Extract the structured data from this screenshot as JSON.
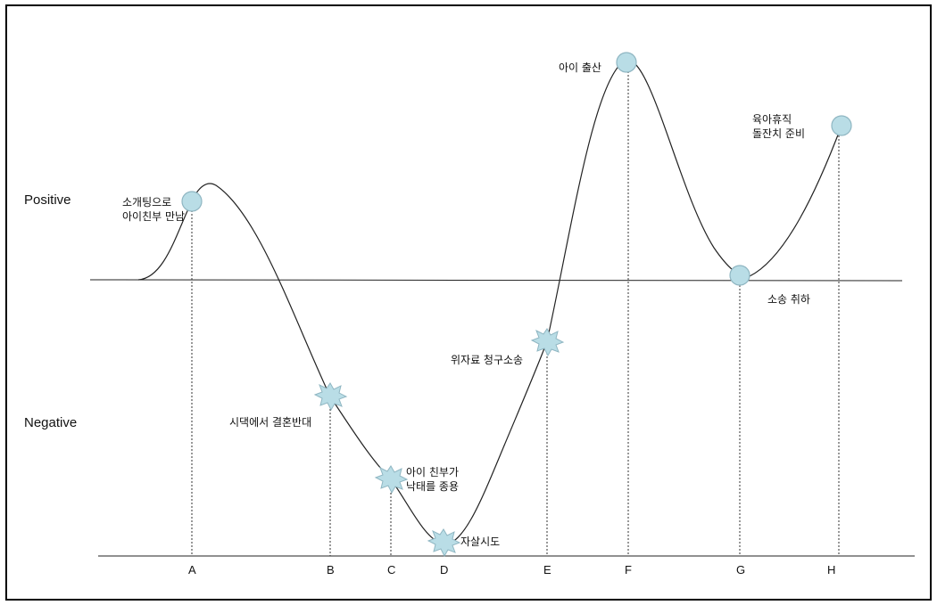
{
  "axis": {
    "positive": "Positive",
    "negative": "Negative"
  },
  "colors": {
    "marker_fill": "#b9dde6",
    "marker_stroke": "#8fb6c2",
    "line": "#222222"
  },
  "stages": [
    {
      "letter": "A",
      "label": [
        "소개팅으로",
        "아이친부 만남"
      ],
      "marker": "circle"
    },
    {
      "letter": "B",
      "label": [
        "시댁에서 결혼반대"
      ],
      "marker": "burst"
    },
    {
      "letter": "C",
      "label": [
        "아이 친부가",
        "낙태를 종용"
      ],
      "marker": "burst"
    },
    {
      "letter": "D",
      "label": [
        "자살시도"
      ],
      "marker": "burst"
    },
    {
      "letter": "E",
      "label": [
        "위자료 청구소송"
      ],
      "marker": "burst"
    },
    {
      "letter": "F",
      "label": [
        "아이 출산"
      ],
      "marker": "circle"
    },
    {
      "letter": "G",
      "label": [
        "소송 취하"
      ],
      "marker": "circle"
    },
    {
      "letter": "H",
      "label": [
        "육아휴직",
        "돌잔치 준비"
      ],
      "marker": "circle"
    }
  ]
}
